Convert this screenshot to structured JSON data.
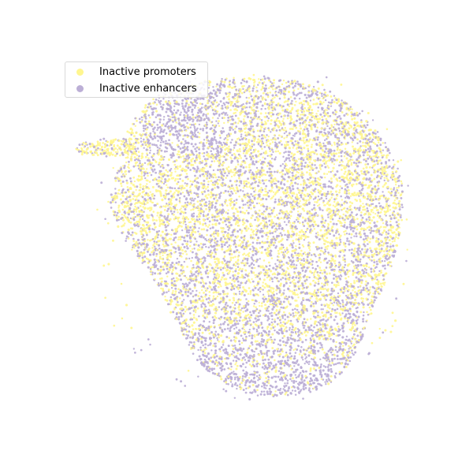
{
  "chart_data": {
    "type": "scatter",
    "title": "",
    "xlabel": "",
    "ylabel": "",
    "axes_visible": false,
    "grid": false,
    "legend": {
      "position": "top-left",
      "entries": [
        {
          "label": "Inactive promoters",
          "color": "#fff68f"
        },
        {
          "label": "Inactive enhancers",
          "color": "#bcafd6"
        }
      ]
    },
    "series": [
      {
        "name": "Inactive promoters",
        "color": "#fff68f",
        "distribution": "spread across the whole cloud, denser in the central and upper-right regions and the left protrusion"
      },
      {
        "name": "Inactive enhancers",
        "color": "#bcafd6",
        "distribution": "spread across the whole cloud, denser in the lower region and the upper-left region"
      }
    ]
  }
}
